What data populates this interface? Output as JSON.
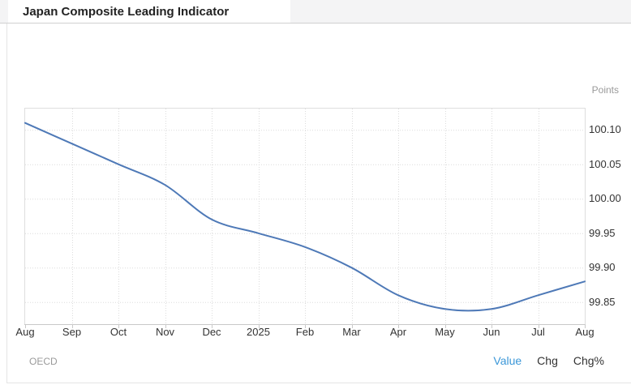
{
  "header": {
    "title": "Japan Composite Leading Indicator"
  },
  "chart": {
    "unit_label": "Points"
  },
  "footer": {
    "source": "OECD",
    "toggles": [
      {
        "label": "Value",
        "active": true
      },
      {
        "label": "Chg",
        "active": false
      },
      {
        "label": "Chg%",
        "active": false
      }
    ]
  },
  "colors": {
    "line": "#4e79b7",
    "toggle_active": "#3b97d8",
    "grid": "#dcdcdc",
    "axis_border": "#c9c9c9",
    "axis_text": "#333333",
    "muted_text": "#9a9a9a",
    "header_bg": "#f4f4f5"
  },
  "chart_data": {
    "type": "line",
    "title": "Japan Composite Leading Indicator",
    "unit": "Points",
    "categories": [
      "Aug",
      "Sep",
      "Oct",
      "Nov",
      "Dec",
      "2025",
      "Feb",
      "Mar",
      "Apr",
      "May",
      "Jun",
      "Jul",
      "Aug"
    ],
    "values": [
      100.11,
      100.08,
      100.05,
      100.02,
      99.97,
      99.95,
      99.93,
      99.9,
      99.86,
      99.84,
      99.84,
      99.86,
      99.88
    ],
    "yticks": [
      "100.10",
      "100.05",
      "100.00",
      "99.95",
      "99.90",
      "99.85"
    ],
    "ylim": [
      99.818,
      100.132
    ],
    "xlabel": "",
    "ylabel": "Points",
    "grid": "dotted",
    "legend_position": "none",
    "source": "OECD"
  }
}
